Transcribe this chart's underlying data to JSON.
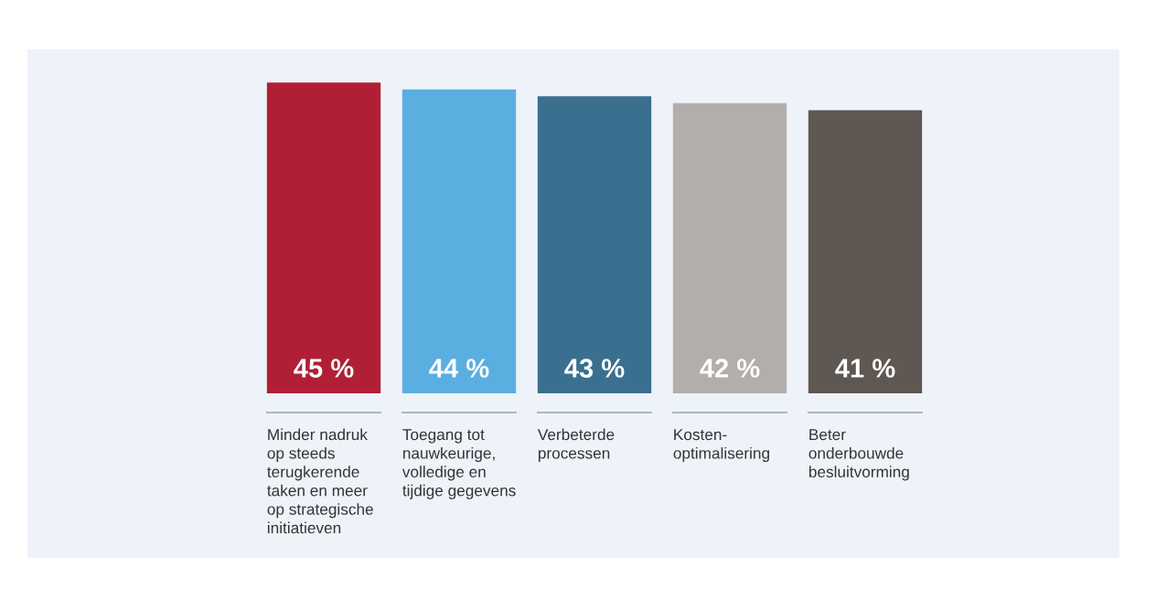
{
  "chart_data": {
    "type": "bar",
    "categories": [
      "Minder nadruk\nop steeds\nterugkerende\ntaken en meer\nop strategische\ninitiatieven",
      "Toegang tot\nnauwkeurige,\nvolledige en\ntijdige gegevens",
      "Verbeterde\nprocessen",
      "Kosten-\noptimalisering",
      "Beter\nonderbouwde\nbesluitvorming"
    ],
    "values": [
      45,
      44,
      43,
      42,
      41
    ],
    "colors": [
      "#b01f35",
      "#5aaee0",
      "#3a6f8f",
      "#b3aeab",
      "#5e5752"
    ],
    "value_labels": [
      "45 %",
      "44 %",
      "43 %",
      "42 %",
      "41 %"
    ]
  }
}
